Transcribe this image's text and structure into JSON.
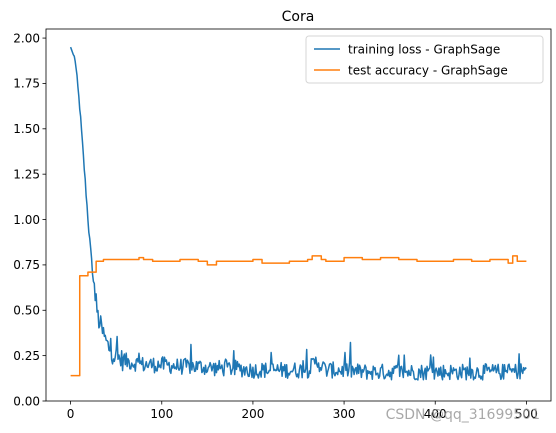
{
  "chart_data": {
    "type": "line",
    "title": "Cora",
    "xlabel": "",
    "ylabel": "",
    "xlim": [
      -27,
      527
    ],
    "ylim": [
      0.0,
      2.05
    ],
    "x_ticks": [
      0,
      100,
      200,
      300,
      400,
      500
    ],
    "y_ticks": [
      0.0,
      0.25,
      0.5,
      0.75,
      1.0,
      1.25,
      1.5,
      1.75,
      2.0
    ],
    "grid": false,
    "legend_position": "top-right",
    "series": [
      {
        "name": "training loss - GraphSage",
        "color": "#1f77b4",
        "x": [
          0,
          5,
          10,
          15,
          20,
          25,
          30,
          35,
          40,
          45,
          50,
          60,
          70,
          80,
          90,
          100,
          120,
          140,
          160,
          180,
          200,
          220,
          240,
          260,
          270,
          280,
          300,
          320,
          340,
          360,
          380,
          400,
          420,
          440,
          460,
          480,
          500
        ],
        "values": [
          1.95,
          1.88,
          1.62,
          1.28,
          0.94,
          0.66,
          0.46,
          0.38,
          0.31,
          0.27,
          0.24,
          0.22,
          0.21,
          0.2,
          0.2,
          0.2,
          0.19,
          0.19,
          0.18,
          0.18,
          0.17,
          0.17,
          0.17,
          0.17,
          0.22,
          0.17,
          0.17,
          0.16,
          0.16,
          0.16,
          0.16,
          0.16,
          0.16,
          0.16,
          0.16,
          0.16,
          0.17
        ]
      },
      {
        "name": "test accuracy - GraphSage",
        "color": "#ff7f0e",
        "x": [
          0,
          9,
          10,
          18,
          19,
          27,
          28,
          35,
          36,
          70,
          75,
          80,
          90,
          100,
          120,
          140,
          150,
          160,
          170,
          200,
          210,
          240,
          260,
          265,
          275,
          280,
          300,
          320,
          340,
          360,
          380,
          400,
          420,
          440,
          460,
          480,
          485,
          490,
          500
        ],
        "values": [
          0.14,
          0.14,
          0.69,
          0.69,
          0.71,
          0.71,
          0.77,
          0.77,
          0.78,
          0.78,
          0.79,
          0.78,
          0.77,
          0.77,
          0.78,
          0.77,
          0.75,
          0.77,
          0.77,
          0.78,
          0.76,
          0.77,
          0.78,
          0.8,
          0.78,
          0.77,
          0.79,
          0.78,
          0.79,
          0.78,
          0.77,
          0.77,
          0.78,
          0.77,
          0.78,
          0.76,
          0.8,
          0.77,
          0.77
        ]
      }
    ]
  },
  "watermark": "CSDN @qq_31699501"
}
